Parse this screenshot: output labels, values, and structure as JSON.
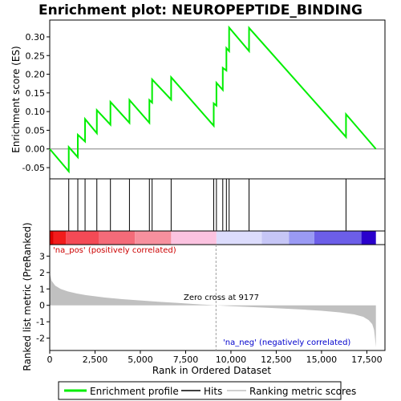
{
  "chart_data": {
    "type": "line",
    "title": "Enrichment plot: NEUROPEPTIDE_BINDING",
    "es_panel": {
      "ylabel": "Enrichment score (ES)",
      "ylim": [
        -0.08,
        0.345
      ],
      "yticks": [
        -0.05,
        0.0,
        0.05,
        0.1,
        0.15,
        0.2,
        0.25,
        0.3
      ],
      "ytick_labels": [
        "-0.05",
        "0.00",
        "0.05",
        "0.10",
        "0.15",
        "0.20",
        "0.25",
        "0.30"
      ],
      "zero_line": true,
      "series": [
        {
          "name": "Enrichment profile",
          "color": "#00ee00",
          "x": [
            0,
            1050,
            1050,
            1550,
            1550,
            1950,
            1950,
            2600,
            2600,
            3350,
            3350,
            4400,
            4400,
            5500,
            5500,
            5650,
            5650,
            6700,
            6700,
            9050,
            9050,
            9200,
            9200,
            9550,
            9550,
            9750,
            9750,
            9900,
            9900,
            11000,
            11000,
            16350,
            16350,
            18000
          ],
          "y": [
            0.0,
            -0.06,
            0.005,
            -0.022,
            0.038,
            0.02,
            0.08,
            0.042,
            0.104,
            0.065,
            0.126,
            0.07,
            0.131,
            0.07,
            0.131,
            0.124,
            0.186,
            0.132,
            0.192,
            0.062,
            0.122,
            0.116,
            0.177,
            0.158,
            0.217,
            0.21,
            0.27,
            0.262,
            0.325,
            0.262,
            0.324,
            0.032,
            0.093,
            0.0
          ]
        }
      ]
    },
    "hits": {
      "name": "Hits",
      "color": "#000000",
      "x": [
        1050,
        1550,
        1950,
        2600,
        3350,
        4400,
        5500,
        5650,
        6700,
        9050,
        9200,
        9550,
        9750,
        9900,
        11000,
        16350
      ]
    },
    "rank_panel": {
      "ylabel": "Ranked list metric (PreRanked)",
      "xlabel": "Rank in Ordered Dataset",
      "ylim": [
        -2.75,
        3.7
      ],
      "yticks": [
        -2,
        -1,
        0,
        1,
        2,
        3
      ],
      "ytick_labels": [
        "-2",
        "-1",
        "0",
        "1",
        "2",
        "3"
      ],
      "xlim": [
        0,
        18500
      ],
      "xticks": [
        0,
        2500,
        5000,
        7500,
        10000,
        12500,
        15000,
        17500
      ],
      "xtick_labels": [
        "0",
        "2,500",
        "5,000",
        "7,500",
        "10,000",
        "12,500",
        "15,000",
        "17,500"
      ],
      "series": {
        "name": "Ranking metric scores",
        "color": "#c0c0c0",
        "x": [
          0,
          100,
          300,
          600,
          1000,
          1500,
          2000,
          3000,
          4000,
          5000,
          6000,
          7000,
          8000,
          9177,
          10000,
          11000,
          12000,
          13000,
          14000,
          15000,
          16000,
          16800,
          17300,
          17600,
          17800,
          17900,
          17950,
          18000
        ],
        "y": [
          1.95,
          1.5,
          1.2,
          1.0,
          0.85,
          0.72,
          0.62,
          0.48,
          0.38,
          0.3,
          0.22,
          0.15,
          0.08,
          0.0,
          -0.05,
          -0.1,
          -0.15,
          -0.2,
          -0.26,
          -0.33,
          -0.43,
          -0.55,
          -0.7,
          -0.9,
          -1.15,
          -1.5,
          -2.0,
          -2.55
        ]
      },
      "annotations": {
        "pos_label": "'na_pos' (positively correlated)",
        "neg_label": "'na_neg' (negatively correlated)",
        "zero_cross_label": "Zero cross at 9177",
        "zero_cross_x": 9177,
        "pos_color": "#cc0000",
        "neg_color": "#0000cc"
      }
    },
    "heat_strip": {
      "segments": [
        {
          "x0": 0,
          "x1": 200,
          "color": "#dd0000"
        },
        {
          "x0": 200,
          "x1": 900,
          "color": "#f21c1c"
        },
        {
          "x0": 900,
          "x1": 2700,
          "color": "#f44a56"
        },
        {
          "x0": 2700,
          "x1": 4700,
          "color": "#f46b79"
        },
        {
          "x0": 4700,
          "x1": 6700,
          "color": "#f7909e"
        },
        {
          "x0": 6700,
          "x1": 9200,
          "color": "#fbc3e0"
        },
        {
          "x0": 9200,
          "x1": 11700,
          "color": "#dcdcfc"
        },
        {
          "x0": 11700,
          "x1": 13200,
          "color": "#c6c6f6"
        },
        {
          "x0": 13200,
          "x1": 14600,
          "color": "#9a9af4"
        },
        {
          "x0": 14600,
          "x1": 17200,
          "color": "#6c5ee8"
        },
        {
          "x0": 17200,
          "x1": 18000,
          "color": "#2a00cc"
        }
      ]
    },
    "legend": [
      {
        "label": "Enrichment profile",
        "color": "#00ee00"
      },
      {
        "label": "Hits",
        "color": "#000000"
      },
      {
        "label": "Ranking metric scores",
        "color": "#c0c0c0"
      }
    ]
  }
}
